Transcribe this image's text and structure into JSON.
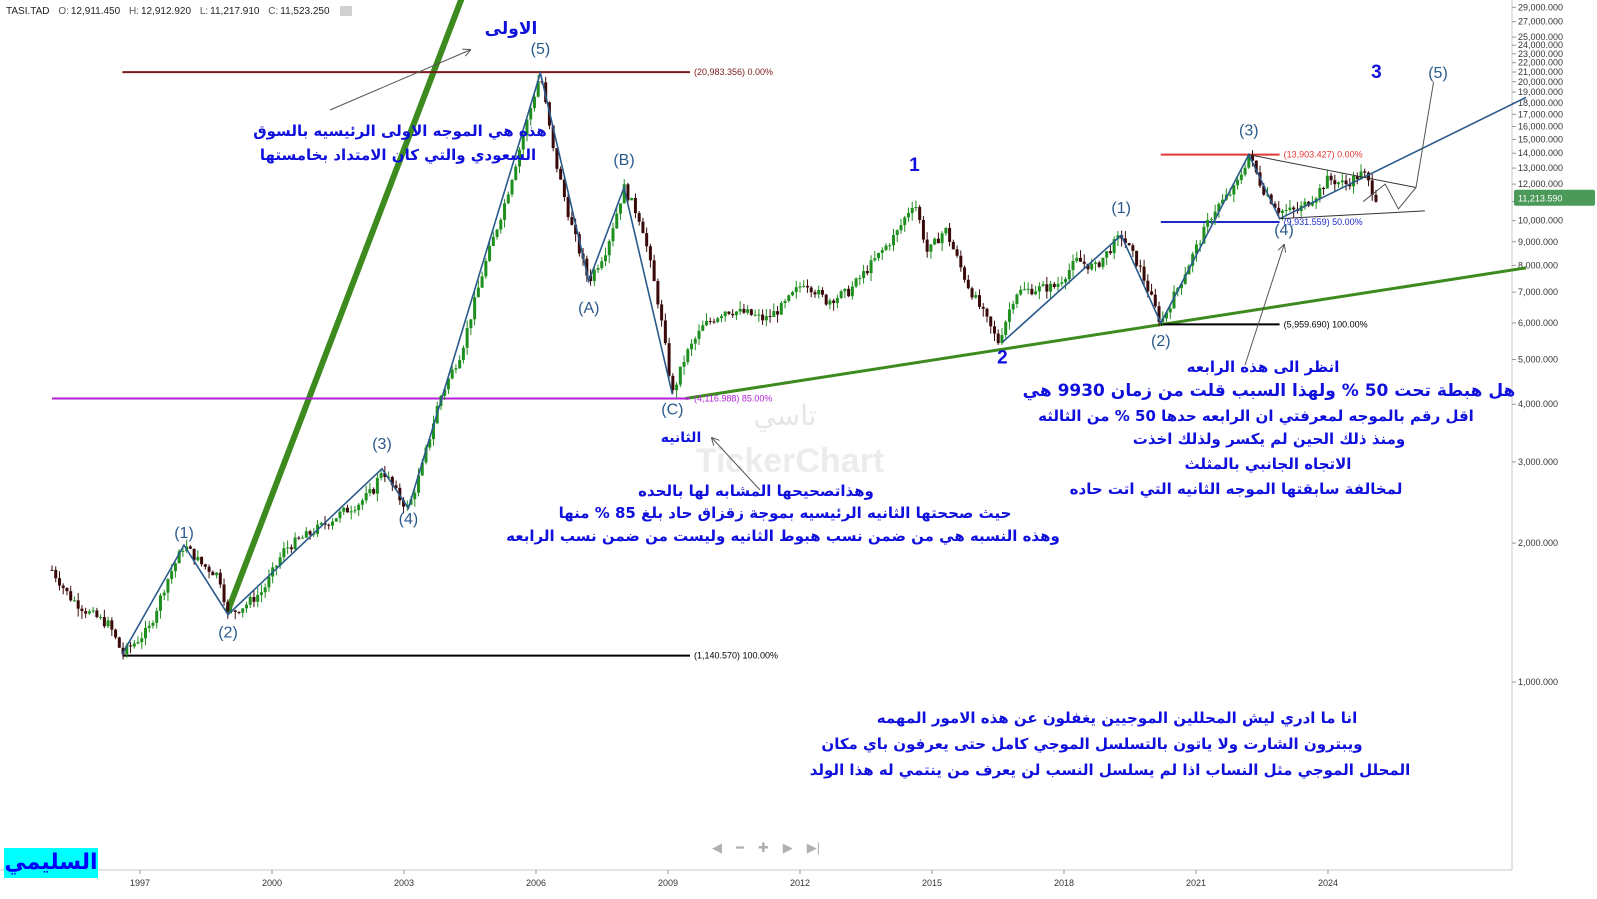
{
  "header": {
    "symbol": "TASI.TAD",
    "o_label": "O:",
    "o_value": "12,911.450",
    "h_label": "H:",
    "h_value": "12,912.920",
    "l_label": "L:",
    "l_value": "11,217.910",
    "c_label": "C:",
    "c_value": "11,523.250"
  },
  "watermark": {
    "arabic": "تاسي",
    "latin": "TickerChart"
  },
  "brand": "السليمي",
  "nav": {
    "left": "◀",
    "minus": "━",
    "plus": "✚",
    "right": "▶",
    "end": "▶|"
  },
  "last_price_tag": "11,213.590",
  "chart_data": {
    "type": "line",
    "y_scale": "log",
    "y_ticks": [
      "1,000.000",
      "2,000.000",
      "3,000.000",
      "4,000.000",
      "5,000.000",
      "6,000.000",
      "7,000.000",
      "8,000.000",
      "9,000.000",
      "10,000.000",
      "11,000.000",
      "12,000.000",
      "13,000.000",
      "14,000.000",
      "15,000.000",
      "16,000.000",
      "17,000.000",
      "18,000.000",
      "19,000.000",
      "20,000.000",
      "21,000.000",
      "22,000.000",
      "23,000.000",
      "24,000.000",
      "25,000.000",
      "27,000.000",
      "29,000.000"
    ],
    "x_ticks": [
      "1997",
      "2000",
      "2003",
      "2006",
      "2009",
      "2012",
      "2015",
      "2018",
      "2021",
      "2024"
    ],
    "series": [
      {
        "values": [
          [
            "1995.0",
            1750
          ],
          [
            "1995.4",
            1530
          ],
          [
            "1995.8",
            1420
          ],
          [
            "1996.3",
            1330
          ],
          [
            "1996.6",
            1150
          ],
          [
            "1997.2",
            1300
          ],
          [
            "1997.6",
            1650
          ],
          [
            "1998.0",
            1980
          ],
          [
            "1998.4",
            1800
          ],
          [
            "1998.8",
            1700
          ],
          [
            "1999.0",
            1400
          ],
          [
            "1999.4",
            1470
          ],
          [
            "1999.8",
            1580
          ],
          [
            "2000.3",
            1950
          ],
          [
            "2000.8",
            2080
          ],
          [
            "2001.2",
            2200
          ],
          [
            "2001.6",
            2330
          ],
          [
            "2002.0",
            2450
          ],
          [
            "2002.3",
            2600
          ],
          [
            "2002.5",
            2900
          ],
          [
            "2002.9",
            2500
          ],
          [
            "2003.1",
            2380
          ],
          [
            "2003.4",
            2900
          ],
          [
            "2003.8",
            4100
          ],
          [
            "2004.3",
            5200
          ],
          [
            "2004.8",
            7800
          ],
          [
            "2005.3",
            11000
          ],
          [
            "2005.8",
            16500
          ],
          [
            "2006.1",
            20900
          ],
          [
            "2006.4",
            14000
          ],
          [
            "2006.8",
            9800
          ],
          [
            "2007.2",
            7400
          ],
          [
            "2007.6",
            8700
          ],
          [
            "2008.0",
            11800
          ],
          [
            "2008.4",
            9900
          ],
          [
            "2008.8",
            6500
          ],
          [
            "2009.1",
            4200
          ],
          [
            "2009.4",
            5100
          ],
          [
            "2009.8",
            5900
          ],
          [
            "2010.3",
            6400
          ],
          [
            "2010.8",
            6300
          ],
          [
            "2011.2",
            6100
          ],
          [
            "2011.6",
            6500
          ],
          [
            "2012.1",
            7400
          ],
          [
            "2012.6",
            6700
          ],
          [
            "2013.1",
            7000
          ],
          [
            "2013.6",
            8000
          ],
          [
            "2014.2",
            9400
          ],
          [
            "2014.6",
            11100
          ],
          [
            "2014.9",
            8500
          ],
          [
            "2015.3",
            9600
          ],
          [
            "2015.8",
            7300
          ],
          [
            "2016.2",
            6200
          ],
          [
            "2016.5",
            5450
          ],
          [
            "2016.9",
            7000
          ],
          [
            "2017.3",
            7100
          ],
          [
            "2017.8",
            7200
          ],
          [
            "2018.3",
            8200
          ],
          [
            "2018.7",
            7900
          ],
          [
            "2019.3",
            9300
          ],
          [
            "2019.7",
            8000
          ],
          [
            "2020.2",
            6000
          ],
          [
            "2020.6",
            7200
          ],
          [
            "2021.0",
            8700
          ],
          [
            "2021.4",
            10500
          ],
          [
            "2021.9",
            11800
          ],
          [
            "2022.2",
            13900
          ],
          [
            "2022.5",
            11800
          ],
          [
            "2022.9",
            10500
          ],
          [
            "2023.3",
            10500
          ],
          [
            "2023.7",
            11300
          ],
          [
            "2024.0",
            12300
          ],
          [
            "2024.4",
            12000
          ],
          [
            "2024.8",
            12700
          ],
          [
            "2025.1",
            11200
          ]
        ]
      }
    ],
    "wave_labels": [
      {
        "text": "(1)",
        "x": "1998.0",
        "y": 2050
      },
      {
        "text": "(2)",
        "x": "1999.0",
        "y": 1250
      },
      {
        "text": "(3)",
        "x": "2002.5",
        "y": 3200
      },
      {
        "text": "(4)",
        "x": "2003.1",
        "y": 2200
      },
      {
        "text": "(5)",
        "x": "2006.1",
        "y": 23000
      },
      {
        "text": "(A)",
        "x": "2007.2",
        "y": 6300
      },
      {
        "text": "(B)",
        "x": "2008.0",
        "y": 13200
      },
      {
        "text": "(C)",
        "x": "2009.1",
        "y": 3800
      },
      {
        "text": "1",
        "x": "2014.6",
        "y": 12800
      },
      {
        "text": "2",
        "x": "2016.6",
        "y": 4900
      },
      {
        "text": "(1)",
        "x": "2019.3",
        "y": 10400
      },
      {
        "text": "(2)",
        "x": "2020.2",
        "y": 5350
      },
      {
        "text": "(3)",
        "x": "2022.2",
        "y": 15300
      },
      {
        "text": "(4)",
        "x": "2023.0",
        "y": 9300
      },
      {
        "text": "3",
        "x": "2025.1",
        "y": 20400
      },
      {
        "text": "(5)",
        "x": "2026.5",
        "y": 20400
      }
    ],
    "fib_lines": [
      {
        "label": "(20,983.356) 0.00%",
        "value": 20983.356,
        "from": "1996.6",
        "to": "2009.5",
        "color": "#7b1a1a"
      },
      {
        "label": "(4,116.988) 85.00%",
        "value": 4116.988,
        "from": "1995.0",
        "to": "2009.5",
        "color": "#b11fd6"
      },
      {
        "label": "(1,140.570) 100.00%",
        "value": 1140.57,
        "from": "1996.6",
        "to": "2009.5",
        "color": "#000000"
      },
      {
        "label": "(13,903.427) 0.00%",
        "value": 13903.427,
        "from": "2020.2",
        "to": "2022.9",
        "color": "#e53935"
      },
      {
        "label": "(9,931.559) 50.00%",
        "value": 9931.559,
        "from": "2020.2",
        "to": "2022.9",
        "color": "#1e2ac8"
      },
      {
        "label": "(5,959.690) 100.00%",
        "value": 5959.69,
        "from": "2020.2",
        "to": "2022.9",
        "color": "#000000"
      }
    ],
    "annotations": [
      {
        "text": "الاولى",
        "color": "#1010dd"
      },
      {
        "text": "هذه هي الموجه الاولى الرئيسيه بالسوق",
        "color": "#1010dd"
      },
      {
        "text": "السعودي والتي كان الامتداد بخامستها",
        "color": "#1010dd"
      },
      {
        "text": "الثانيه",
        "color": "#1010dd"
      },
      {
        "text": "وهذاتصحيحها المشابه لها بالحده",
        "color": "#1010dd"
      },
      {
        "text": "حيث صححتها الثانيه الرئيسيه بموجة زقزاق حاد بلغ 85 % منها",
        "color": "#1010dd"
      },
      {
        "text": "وهذه النسبه هي من ضمن نسب هبوط الثانيه وليست من ضمن نسب الرابعه",
        "color": "#1010dd"
      },
      {
        "text": "انظر الى هذه الرابعه",
        "color": "#1010dd"
      },
      {
        "text": "هل هبطة تحت 50 %  ولهذا السبب قلت من زمان 9930 هي",
        "color": "#1010dd"
      },
      {
        "text": "اقل رقم بالموجه لمعرفتي ان الرابعه حدها 50 % من الثالثه",
        "color": "#1010dd"
      },
      {
        "text": "ومنذ ذلك الحين لم يكسر ولذلك اخذت",
        "color": "#1010dd"
      },
      {
        "text": "الاتجاه الجانبي بالمثلث",
        "color": "#1010dd"
      },
      {
        "text": "لمخالفة سابقتها الموجه الثانيه التي اتت حاده",
        "color": "#1010dd"
      },
      {
        "text": "انا ما ادري ليش المحللين الموجيين يغفلون عن هذه الامور المهمه",
        "color": "#1010dd"
      },
      {
        "text": "ويبترون الشارت ولا ياتون بالتسلسل الموجي كامل حتى يعرفون باي مكان",
        "color": "#1010dd"
      },
      {
        "text": "المحلل الموجي مثل النساب اذا لم يسلسل النسب لن يعرف من ينتمي له هذا الولد",
        "color": "#1010dd"
      }
    ],
    "colors": {
      "bull_candle": "#1f8f1f",
      "bear_candle": "#3a0a0a",
      "wave_line": "#2a5a8c",
      "trend_line": "#3d8b1f",
      "price_tag": "#4c9a5a"
    },
    "grid": false
  }
}
